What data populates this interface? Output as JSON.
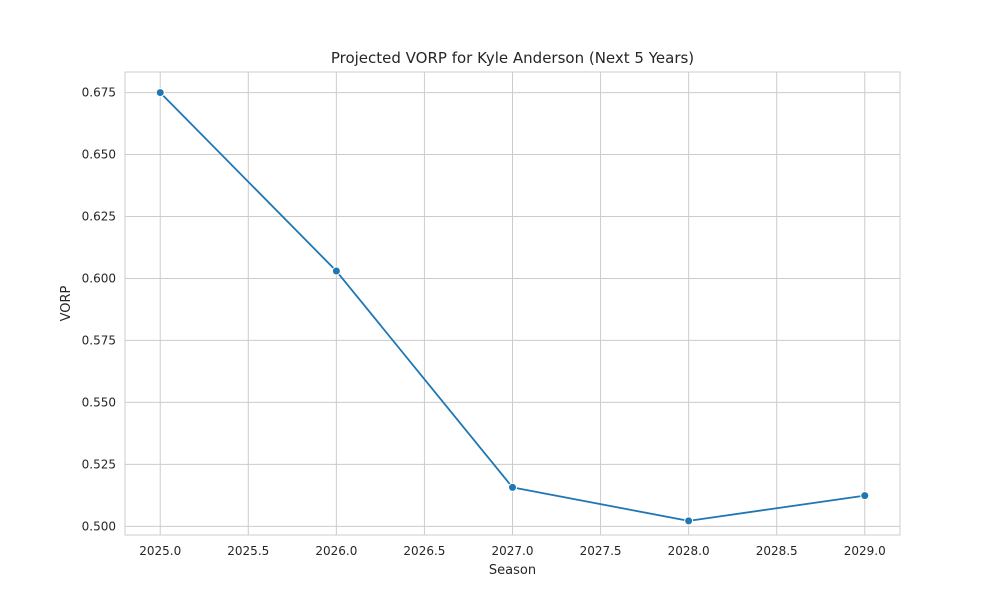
{
  "chart_data": {
    "type": "line",
    "title": "Projected VORP for Kyle Anderson (Next 5 Years)",
    "xlabel": "Season",
    "ylabel": "VORP",
    "xlim": [
      2024.8,
      2029.2
    ],
    "ylim": [
      0.4965,
      0.6833
    ],
    "x_ticks": [
      2025.0,
      2025.5,
      2026.0,
      2026.5,
      2027.0,
      2027.5,
      2028.0,
      2028.5,
      2029.0
    ],
    "x_tick_labels": [
      "2025.0",
      "2025.5",
      "2026.0",
      "2026.5",
      "2027.0",
      "2027.5",
      "2028.0",
      "2028.5",
      "2029.0"
    ],
    "y_ticks": [
      0.5,
      0.525,
      0.55,
      0.575,
      0.6,
      0.625,
      0.65,
      0.675
    ],
    "y_tick_labels": [
      "0.500",
      "0.525",
      "0.550",
      "0.575",
      "0.600",
      "0.625",
      "0.650",
      "0.675"
    ],
    "grid": true,
    "series": [
      {
        "x": [
          2025,
          2026,
          2027,
          2028,
          2029
        ],
        "y": [
          0.675,
          0.603,
          0.5157,
          0.5022,
          0.5124
        ],
        "color": "#1f77b4",
        "marker": "circle"
      }
    ]
  }
}
